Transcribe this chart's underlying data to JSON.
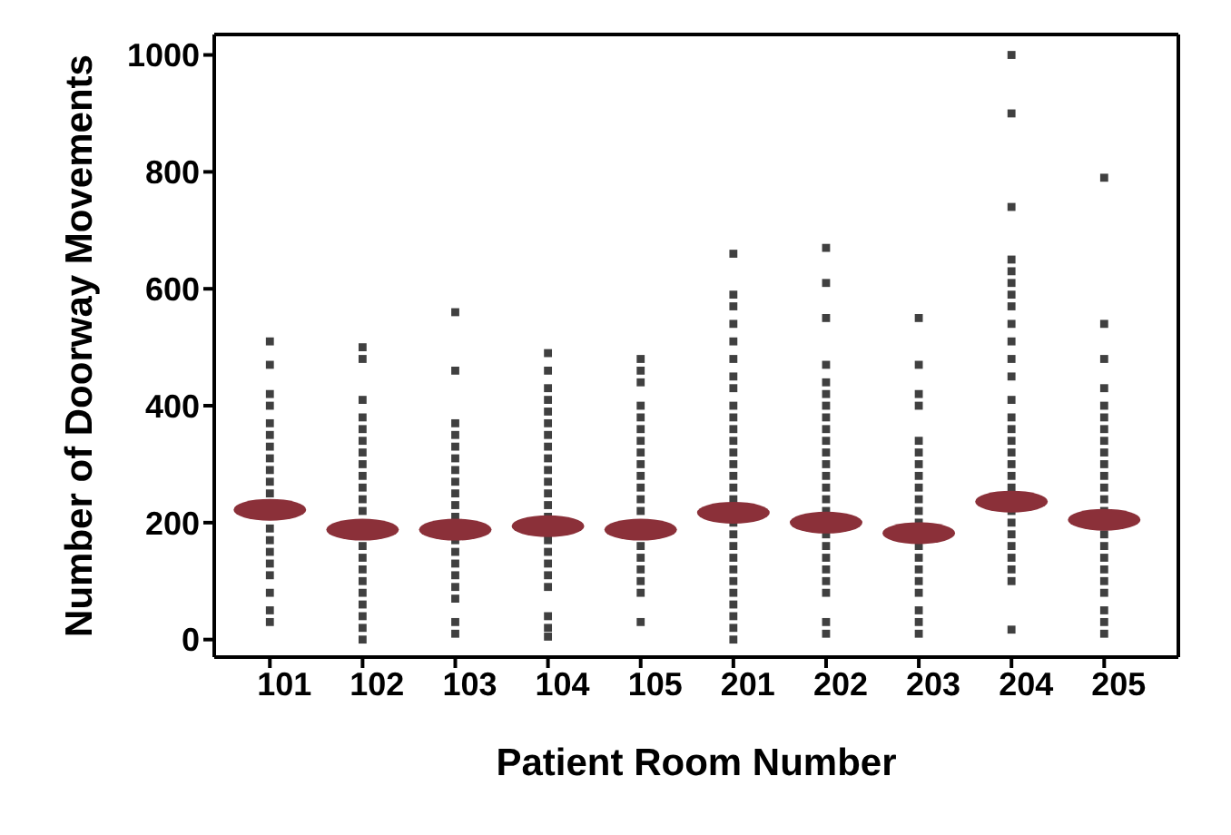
{
  "chart_data": {
    "type": "scatter",
    "xlabel": "Patient Room Number",
    "ylabel": "Number of Doorway Movements",
    "categories": [
      "101",
      "102",
      "103",
      "104",
      "105",
      "201",
      "202",
      "203",
      "204",
      "205"
    ],
    "ylim": [
      -30,
      1035
    ],
    "yticks": [
      0,
      200,
      400,
      600,
      800,
      1000
    ],
    "marker": "square",
    "series": [
      {
        "type": "scatter",
        "color": "#404040",
        "x": [
          "101",
          "101",
          "101",
          "101",
          "101",
          "101",
          "101",
          "101",
          "101",
          "101",
          "101",
          "101",
          "101",
          "101",
          "101",
          "101",
          "101",
          "101",
          "101",
          "101",
          "101",
          "102",
          "102",
          "102",
          "102",
          "102",
          "102",
          "102",
          "102",
          "102",
          "102",
          "102",
          "102",
          "102",
          "102",
          "102",
          "102",
          "102",
          "102",
          "102",
          "102",
          "102",
          "102",
          "102",
          "103",
          "103",
          "103",
          "103",
          "103",
          "103",
          "103",
          "103",
          "103",
          "103",
          "103",
          "103",
          "103",
          "103",
          "103",
          "103",
          "103",
          "103",
          "103",
          "103",
          "104",
          "104",
          "104",
          "104",
          "104",
          "104",
          "104",
          "104",
          "104",
          "104",
          "104",
          "104",
          "104",
          "104",
          "104",
          "104",
          "104",
          "104",
          "104",
          "104",
          "104",
          "104",
          "104",
          "105",
          "105",
          "105",
          "105",
          "105",
          "105",
          "105",
          "105",
          "105",
          "105",
          "105",
          "105",
          "105",
          "105",
          "105",
          "105",
          "105",
          "105",
          "105",
          "105",
          "105",
          "201",
          "201",
          "201",
          "201",
          "201",
          "201",
          "201",
          "201",
          "201",
          "201",
          "201",
          "201",
          "201",
          "201",
          "201",
          "201",
          "201",
          "201",
          "201",
          "201",
          "201",
          "201",
          "201",
          "201",
          "201",
          "201",
          "201",
          "201",
          "201",
          "202",
          "202",
          "202",
          "202",
          "202",
          "202",
          "202",
          "202",
          "202",
          "202",
          "202",
          "202",
          "202",
          "202",
          "202",
          "202",
          "202",
          "202",
          "202",
          "202",
          "202",
          "202",
          "202",
          "202",
          "202",
          "203",
          "203",
          "203",
          "203",
          "203",
          "203",
          "203",
          "203",
          "203",
          "203",
          "203",
          "203",
          "203",
          "203",
          "203",
          "203",
          "203",
          "203",
          "203",
          "203",
          "203",
          "204",
          "204",
          "204",
          "204",
          "204",
          "204",
          "204",
          "204",
          "204",
          "204",
          "204",
          "204",
          "204",
          "204",
          "204",
          "204",
          "204",
          "204",
          "204",
          "204",
          "204",
          "204",
          "204",
          "204",
          "204",
          "204",
          "204",
          "204",
          "204",
          "205",
          "205",
          "205",
          "205",
          "205",
          "205",
          "205",
          "205",
          "205",
          "205",
          "205",
          "205",
          "205",
          "205",
          "205",
          "205",
          "205",
          "205",
          "205",
          "205",
          "205",
          "205",
          "205",
          "205"
        ],
        "values": [
          30,
          50,
          80,
          110,
          130,
          150,
          170,
          190,
          null,
          null,
          250,
          270,
          290,
          310,
          330,
          350,
          370,
          400,
          420,
          470,
          510,
          0,
          20,
          40,
          60,
          80,
          100,
          120,
          140,
          160,
          null,
          null,
          220,
          240,
          260,
          280,
          300,
          320,
          340,
          360,
          380,
          410,
          480,
          500,
          10,
          30,
          70,
          90,
          110,
          130,
          150,
          170,
          null,
          210,
          230,
          250,
          270,
          290,
          310,
          330,
          350,
          370,
          460,
          560,
          5,
          20,
          40,
          90,
          110,
          130,
          150,
          170,
          null,
          210,
          230,
          250,
          270,
          290,
          310,
          330,
          350,
          370,
          390,
          410,
          430,
          460,
          490,
          30,
          80,
          100,
          120,
          140,
          160,
          null,
          null,
          220,
          240,
          260,
          280,
          300,
          320,
          340,
          360,
          380,
          400,
          440,
          460,
          480,
          0,
          20,
          40,
          60,
          80,
          100,
          120,
          140,
          160,
          180,
          200,
          null,
          240,
          260,
          280,
          300,
          320,
          340,
          360,
          380,
          400,
          430,
          450,
          480,
          510,
          540,
          570,
          590,
          660,
          10,
          30,
          80,
          100,
          120,
          140,
          160,
          180,
          null,
          220,
          240,
          260,
          280,
          300,
          320,
          340,
          360,
          380,
          400,
          420,
          440,
          470,
          550,
          610,
          670,
          10,
          30,
          50,
          80,
          100,
          120,
          140,
          160,
          null,
          200,
          220,
          240,
          260,
          280,
          300,
          320,
          340,
          400,
          420,
          470,
          550,
          17,
          100,
          120,
          140,
          160,
          180,
          200,
          220,
          null,
          260,
          280,
          300,
          320,
          340,
          360,
          380,
          410,
          450,
          480,
          510,
          540,
          570,
          590,
          610,
          630,
          650,
          740,
          900,
          1000,
          10,
          30,
          50,
          80,
          100,
          120,
          140,
          160,
          180,
          null,
          220,
          240,
          260,
          280,
          300,
          320,
          340,
          360,
          380,
          400,
          430,
          480,
          540,
          790
        ]
      },
      {
        "type": "scatter",
        "color": "#8b3039",
        "marker": "circle",
        "values": [
          222,
          188,
          188,
          194,
          188,
          217,
          200,
          182,
          236,
          205
        ]
      }
    ]
  }
}
